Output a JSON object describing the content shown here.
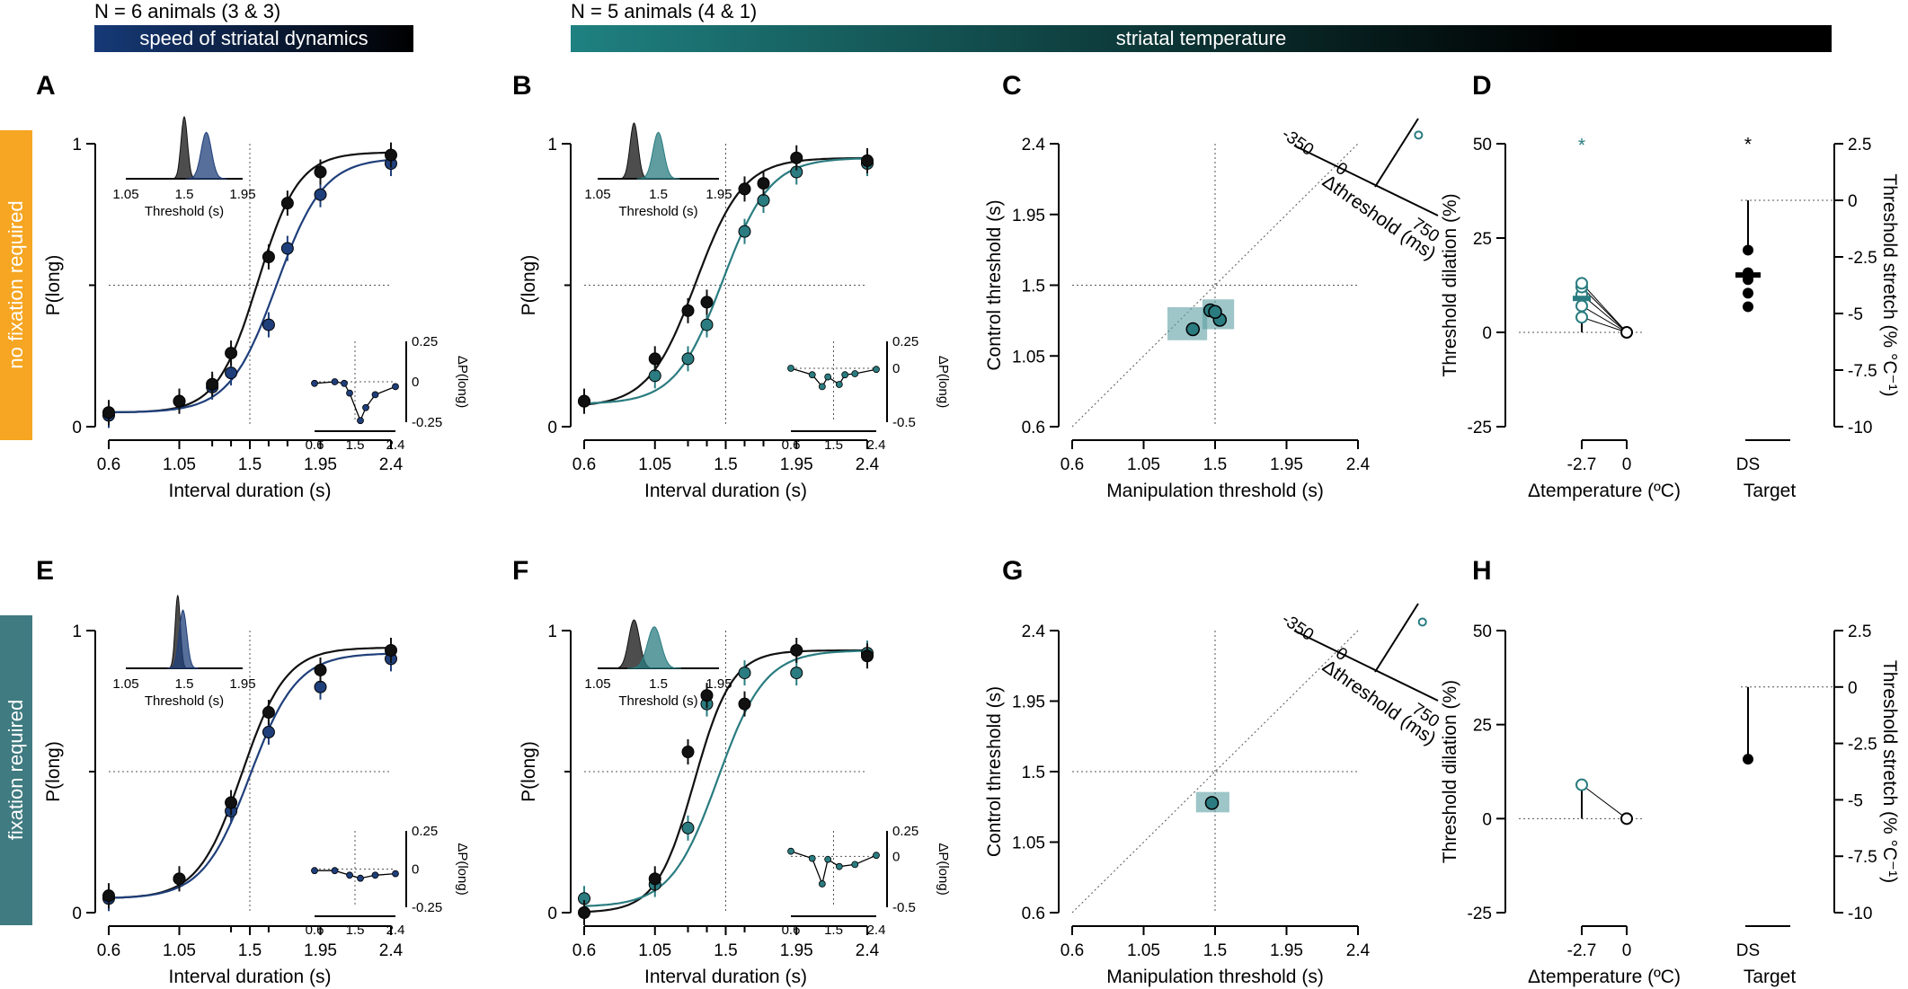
{
  "header": {
    "left_text": "N = 6 animals (3 & 3)",
    "left_bar": "speed of striatal dynamics",
    "right_text": "N = 5 animals (4 & 1)",
    "right_bar": "striatal temperature"
  },
  "row_labels": [
    "no fixation required",
    "fixation required"
  ],
  "colors": {
    "black": "#111111",
    "blue": "#1f3f7a",
    "teal": "#2a7c80",
    "orange": "#f6a623",
    "teal_box": "#5e9fa3",
    "header_blue": "#163a78"
  },
  "chart_data": [
    {
      "panel": "A",
      "type": "line",
      "xlabel": "Interval duration (s)",
      "ylabel": "P(long)",
      "xticks": [
        "0.6",
        "1.05",
        "1.5",
        "1.95",
        "2.4"
      ],
      "yticks": [
        "0",
        "1"
      ],
      "xlim": [
        0.6,
        2.4
      ],
      "ylim": [
        0,
        1
      ],
      "x": [
        0.6,
        1.05,
        1.26,
        1.38,
        1.62,
        1.74,
        1.95,
        2.4
      ],
      "series": [
        {
          "name": "control",
          "color": "black",
          "values": [
            0.05,
            0.09,
            0.15,
            0.26,
            0.6,
            0.79,
            0.9,
            0.96
          ],
          "fit": {
            "t": 1.55,
            "s": 0.13,
            "lo": 0.05,
            "hi": 0.97
          }
        },
        {
          "name": "manipulation",
          "color": "blue",
          "values": [
            0.04,
            0.09,
            0.14,
            0.19,
            0.36,
            0.63,
            0.82,
            0.93
          ],
          "fit": {
            "t": 1.67,
            "s": 0.15,
            "lo": 0.05,
            "hi": 0.95
          }
        }
      ],
      "inset_dist": {
        "xticks": [
          "1.05",
          "1.5",
          "1.95"
        ],
        "xlabel": "Threshold (s)",
        "peaks": [
          {
            "mu": 1.5,
            "sd": 0.025,
            "color": "black"
          },
          {
            "mu": 1.67,
            "sd": 0.04,
            "color": "blue"
          }
        ]
      },
      "inset_delta": {
        "ylabel": "ΔP(long)",
        "xticks": [
          "0.6",
          "1.5",
          "2.4"
        ],
        "yticks": [
          "0.25",
          "0",
          "-0.25"
        ],
        "ylim": [
          -0.25,
          0.25
        ],
        "values": [
          -0.01,
          0.0,
          -0.01,
          -0.07,
          -0.24,
          -0.16,
          -0.08,
          -0.03
        ]
      }
    },
    {
      "panel": "B",
      "type": "line",
      "xlabel": "Interval duration (s)",
      "ylabel": "P(long)",
      "xticks": [
        "0.6",
        "1.05",
        "1.5",
        "1.95",
        "2.4"
      ],
      "yticks": [
        "0",
        "1"
      ],
      "xlim": [
        0.6,
        2.4
      ],
      "ylim": [
        0,
        1
      ],
      "x": [
        0.6,
        1.05,
        1.26,
        1.38,
        1.62,
        1.74,
        1.95,
        2.4
      ],
      "series": [
        {
          "name": "control",
          "color": "black",
          "values": [
            0.09,
            0.24,
            0.41,
            0.44,
            0.84,
            0.86,
            0.95,
            0.94
          ],
          "fit": {
            "t": 1.31,
            "s": 0.15,
            "lo": 0.07,
            "hi": 0.95
          }
        },
        {
          "name": "manipulation",
          "color": "teal",
          "values": [
            0.09,
            0.18,
            0.24,
            0.36,
            0.69,
            0.8,
            0.9,
            0.93
          ],
          "fit": {
            "t": 1.48,
            "s": 0.15,
            "lo": 0.08,
            "hi": 0.95
          }
        }
      ],
      "inset_dist": {
        "xticks": [
          "1.05",
          "1.5",
          "1.95"
        ],
        "xlabel": "Threshold (s)",
        "peaks": [
          {
            "mu": 1.32,
            "sd": 0.03,
            "color": "black"
          },
          {
            "mu": 1.5,
            "sd": 0.04,
            "color": "teal"
          }
        ]
      },
      "inset_delta": {
        "ylabel": "ΔP(long)",
        "xticks": [
          "0.6",
          "1.5",
          "2.4"
        ],
        "yticks": [
          "0.25",
          "0",
          "-0.5"
        ],
        "ylim": [
          -0.5,
          0.25
        ],
        "values": [
          0.0,
          -0.06,
          -0.17,
          -0.08,
          -0.15,
          -0.06,
          -0.05,
          -0.01
        ]
      }
    },
    {
      "panel": "C",
      "type": "scatter",
      "xlabel": "Manipulation threshold (s)",
      "ylabel": "Control threshold (s)",
      "xticks": [
        "0.6",
        "1.05",
        "1.5",
        "1.95",
        "2.4"
      ],
      "yticks": [
        "0.6",
        "1.05",
        "1.5",
        "1.95",
        "2.4"
      ],
      "xlim": [
        0.6,
        2.4
      ],
      "ylim": [
        0.6,
        2.4
      ],
      "points": [
        {
          "x": 1.36,
          "y": 1.22
        },
        {
          "x": 1.47,
          "y": 1.34
        },
        {
          "x": 1.53,
          "y": 1.28
        },
        {
          "x": 1.5,
          "y": 1.33
        }
      ],
      "boxes": [
        {
          "x0": 1.2,
          "x1": 1.45,
          "y0": 1.15,
          "y1": 1.36
        },
        {
          "x0": 1.42,
          "x1": 1.62,
          "y0": 1.22,
          "y1": 1.41
        }
      ],
      "inset_axis": {
        "label": "Δthreshold (ms)",
        "ticks": [
          "-350",
          "0",
          "750"
        ],
        "point": 120
      }
    },
    {
      "panel": "D",
      "type": "scatter",
      "xlabel": "Δtemperature (ºC)",
      "ylabel": "Threshold dilation (%)",
      "ylabel_right": "Threshold stretch (% °C⁻¹)",
      "xticks": [
        "-2.7",
        "0"
      ],
      "yticks": [
        "50",
        "25",
        "0",
        "-25"
      ],
      "yticks_right": [
        "2.5",
        "0",
        "-2.5",
        "-5",
        "-7.5",
        "-10"
      ],
      "ylim": [
        -25,
        50
      ],
      "ylim_right": [
        -10,
        2.5
      ],
      "temp_points": [
        4,
        7,
        10,
        12,
        13
      ],
      "temp_mean": 9,
      "sig_star": "*",
      "target_label": "Target",
      "target_tick": "DS",
      "target_points": [
        -2.2,
        -3.2,
        -3.5,
        -4.1,
        -4.7
      ],
      "target_mean": -3.3,
      "target_sig": "*"
    },
    {
      "panel": "E",
      "type": "line",
      "xlabel": "Interval duration (s)",
      "ylabel": "P(long)",
      "xticks": [
        "0.6",
        "1.05",
        "1.5",
        "1.95",
        "2.4"
      ],
      "yticks": [
        "0",
        "1"
      ],
      "xlim": [
        0.6,
        2.4
      ],
      "ylim": [
        0,
        1
      ],
      "x": [
        0.6,
        1.05,
        1.38,
        1.62,
        1.95,
        2.4
      ],
      "series": [
        {
          "name": "control",
          "color": "black",
          "values": [
            0.06,
            0.12,
            0.39,
            0.71,
            0.86,
            0.93
          ],
          "fit": {
            "t": 1.45,
            "s": 0.14,
            "lo": 0.05,
            "hi": 0.94
          }
        },
        {
          "name": "manipulation",
          "color": "blue",
          "values": [
            0.05,
            0.12,
            0.36,
            0.64,
            0.8,
            0.9
          ],
          "fit": {
            "t": 1.5,
            "s": 0.15,
            "lo": 0.05,
            "hi": 0.92
          }
        }
      ],
      "inset_dist": {
        "xticks": [
          "1.05",
          "1.5",
          "1.95"
        ],
        "xlabel": "Threshold (s)",
        "peaks": [
          {
            "mu": 1.45,
            "sd": 0.02,
            "color": "black"
          },
          {
            "mu": 1.49,
            "sd": 0.03,
            "color": "blue"
          }
        ]
      },
      "inset_delta": {
        "ylabel": "ΔP(long)",
        "xticks": [
          "0.6",
          "1.5",
          "2.4"
        ],
        "yticks": [
          "0.25",
          "0",
          "-0.25"
        ],
        "ylim": [
          -0.25,
          0.25
        ],
        "values": [
          -0.01,
          -0.01,
          -0.04,
          -0.06,
          -0.04,
          -0.03
        ]
      }
    },
    {
      "panel": "F",
      "type": "line",
      "xlabel": "Interval duration (s)",
      "ylabel": "P(long)",
      "xticks": [
        "0.6",
        "1.05",
        "1.5",
        "1.95",
        "2.4"
      ],
      "yticks": [
        "0",
        "1"
      ],
      "xlim": [
        0.6,
        2.4
      ],
      "ylim": [
        0,
        1
      ],
      "x": [
        0.6,
        1.05,
        1.26,
        1.38,
        1.62,
        1.95,
        2.4
      ],
      "series": [
        {
          "name": "control",
          "color": "black",
          "values": [
            0.0,
            0.12,
            0.57,
            0.77,
            0.74,
            0.93,
            0.91
          ],
          "fit": {
            "t": 1.3,
            "s": 0.12,
            "lo": 0.0,
            "hi": 0.93
          }
        },
        {
          "name": "manipulation",
          "color": "teal",
          "values": [
            0.05,
            0.1,
            0.3,
            0.74,
            0.85,
            0.85,
            0.92
          ],
          "fit": {
            "t": 1.45,
            "s": 0.15,
            "lo": 0.02,
            "hi": 0.93
          }
        }
      ],
      "inset_dist": {
        "xticks": [
          "1.05",
          "1.5",
          "1.95"
        ],
        "xlabel": "Threshold (s)",
        "peaks": [
          {
            "mu": 1.32,
            "sd": 0.04,
            "color": "black"
          },
          {
            "mu": 1.47,
            "sd": 0.05,
            "color": "teal"
          }
        ]
      },
      "inset_delta": {
        "ylabel": "ΔP(long)",
        "xticks": [
          "0.6",
          "1.5",
          "2.4"
        ],
        "yticks": [
          "0.25",
          "0",
          "-0.5"
        ],
        "ylim": [
          -0.5,
          0.25
        ],
        "values": [
          0.05,
          -0.02,
          -0.27,
          -0.03,
          -0.1,
          -0.08,
          0.01
        ]
      }
    },
    {
      "panel": "G",
      "type": "scatter",
      "xlabel": "Manipulation threshold (s)",
      "ylabel": "Control threshold (s)",
      "xticks": [
        "0.6",
        "1.05",
        "1.5",
        "1.95",
        "2.4"
      ],
      "yticks": [
        "0.6",
        "1.05",
        "1.5",
        "1.95",
        "2.4"
      ],
      "xlim": [
        0.6,
        2.4
      ],
      "ylim": [
        0.6,
        2.4
      ],
      "points": [
        {
          "x": 1.48,
          "y": 1.3
        }
      ],
      "boxes": [
        {
          "x0": 1.38,
          "x1": 1.59,
          "y0": 1.24,
          "y1": 1.37
        }
      ],
      "inset_axis": {
        "label": "Δthreshold (ms)",
        "ticks": [
          "-350",
          "0",
          "750"
        ],
        "point": 150
      }
    },
    {
      "panel": "H",
      "type": "scatter",
      "xlabel": "Δtemperature (ºC)",
      "ylabel": "Threshold dilation (%)",
      "ylabel_right": "Threshold stretch (% °C⁻¹)",
      "xticks": [
        "-2.7",
        "0"
      ],
      "yticks": [
        "50",
        "25",
        "0",
        "-25"
      ],
      "yticks_right": [
        "2.5",
        "0",
        "-2.5",
        "-5",
        "-7.5",
        "-10"
      ],
      "ylim": [
        -25,
        50
      ],
      "ylim_right": [
        -10,
        2.5
      ],
      "temp_points": [
        9
      ],
      "temp_mean": 9,
      "sig_star": "",
      "target_label": "Target",
      "target_tick": "DS",
      "target_points": [
        -3.2
      ],
      "target_mean": -3.2,
      "target_sig": ""
    }
  ]
}
